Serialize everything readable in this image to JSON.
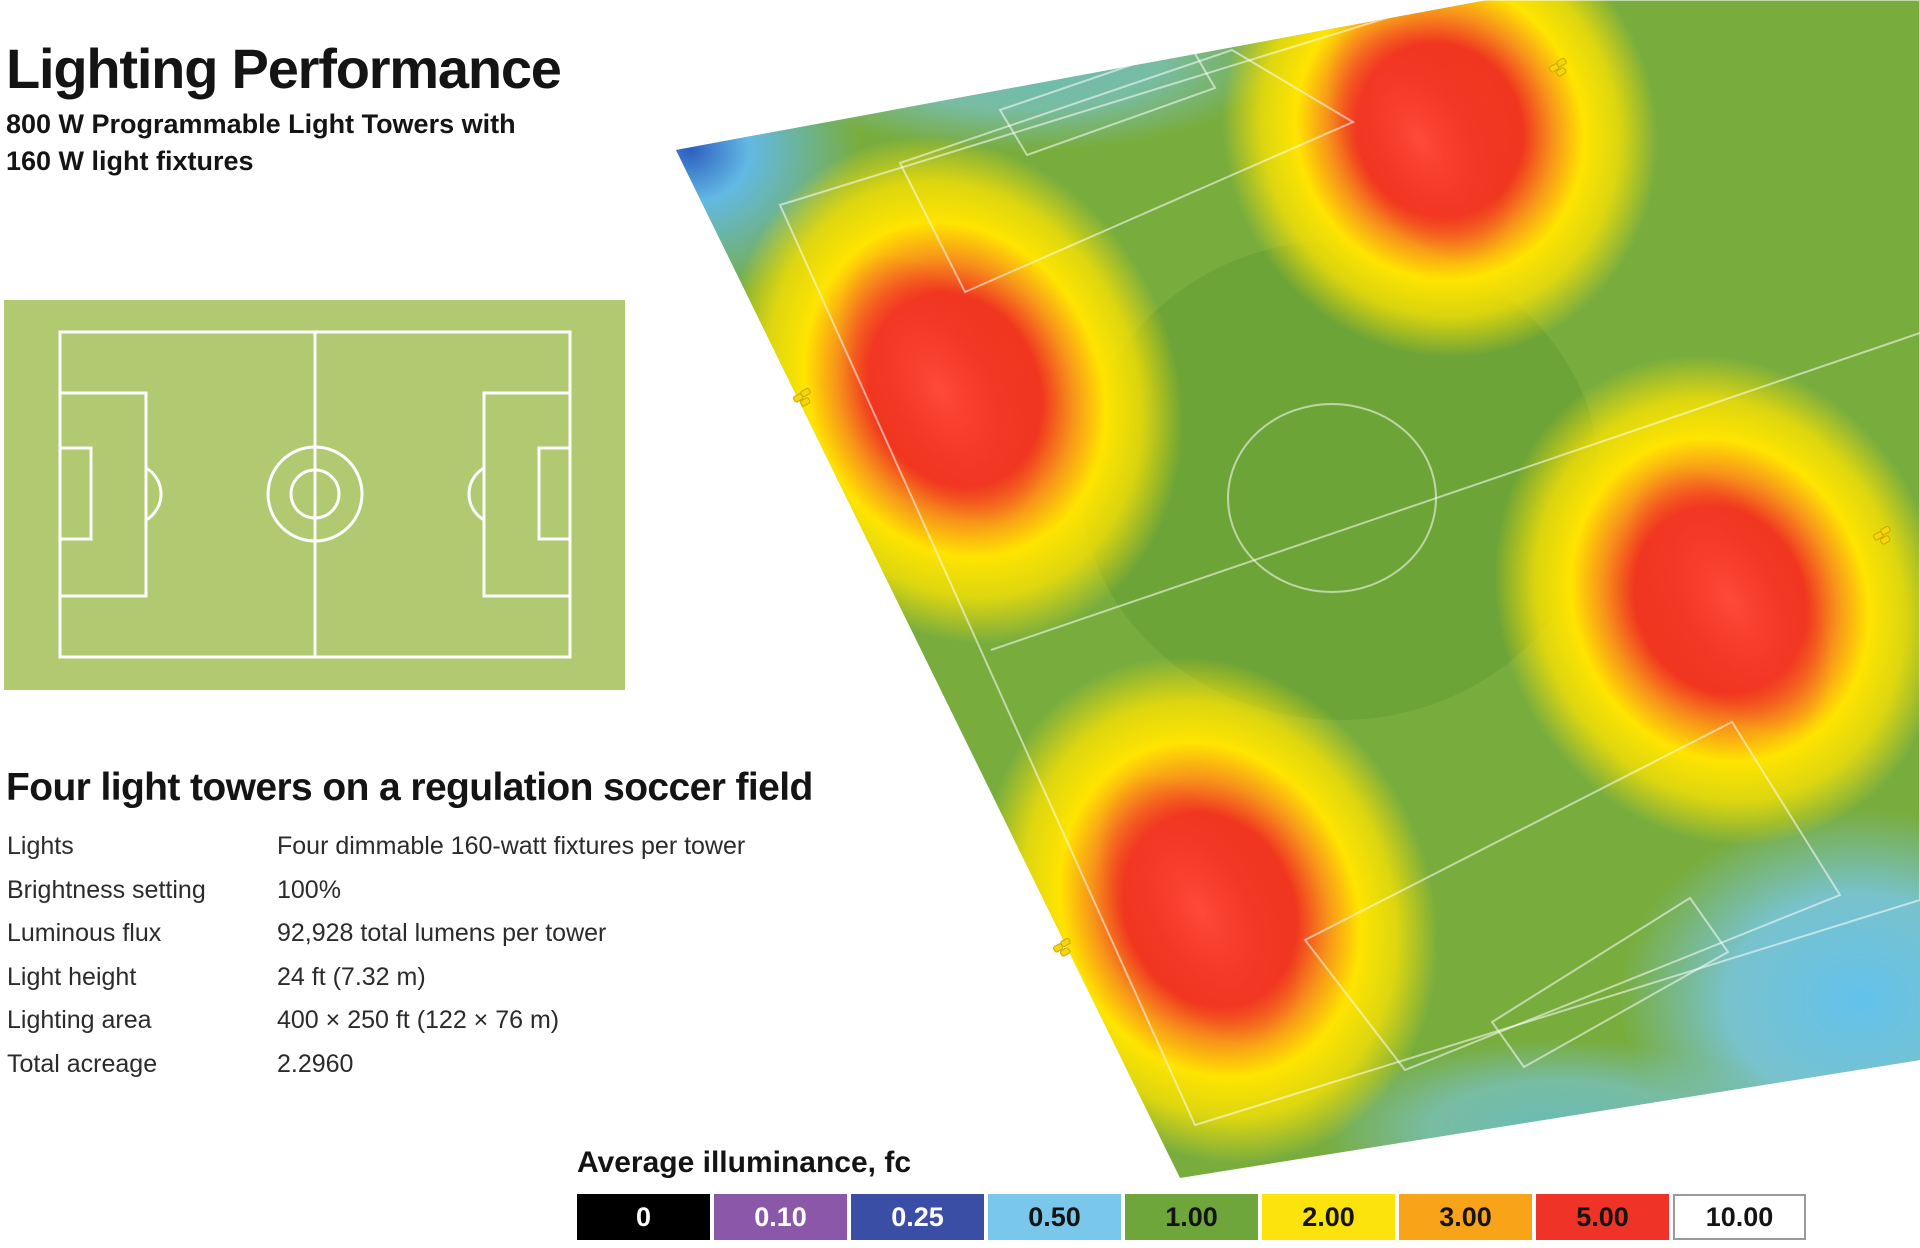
{
  "header": {
    "title": "Lighting Performance",
    "subtitle_line1": "800 W Programmable Light Towers with",
    "subtitle_line2": "160 W light fixtures"
  },
  "section": {
    "heading": "Four light towers on a regulation soccer field"
  },
  "specs": [
    {
      "label": "Lights",
      "value": "Four dimmable 160-watt fixtures per tower"
    },
    {
      "label": "Brightness setting",
      "value": "100%"
    },
    {
      "label": "Luminous flux",
      "value": "92,928 total lumens per tower"
    },
    {
      "label": "Light height",
      "value": "24 ft (7.32 m)"
    },
    {
      "label": "Lighting area",
      "value": "400 × 250 ft (122 × 76 m)"
    },
    {
      "label": "Total acreage",
      "value": "2.2960"
    }
  ],
  "legend": {
    "title": "Average illuminance, fc",
    "items": [
      {
        "label": "0",
        "color": "#000000",
        "text_color": "#ffffff"
      },
      {
        "label": "0.10",
        "color": "#8b57a9",
        "text_color": "#ffffff"
      },
      {
        "label": "0.25",
        "color": "#3b4ea6",
        "text_color": "#ffffff"
      },
      {
        "label": "0.50",
        "color": "#79c7ea",
        "text_color": "#141414"
      },
      {
        "label": "1.00",
        "color": "#6ea63c",
        "text_color": "#141414"
      },
      {
        "label": "2.00",
        "color": "#fbe30b",
        "text_color": "#141414"
      },
      {
        "label": "3.00",
        "color": "#f9a318",
        "text_color": "#141414"
      },
      {
        "label": "5.00",
        "color": "#ef3326",
        "text_color": "#141414"
      },
      {
        "label": "10.00",
        "color": "#ffffff",
        "text_color": "#141414",
        "border": "#9a9a9a"
      }
    ]
  },
  "colors": {
    "field_green": "#b1c971",
    "field_lines": "#ffffff",
    "heat_green": "#78ad3e",
    "heat_blue": "#6cc4ea",
    "heat_yellow": "#ffe400",
    "heat_red": "#f23a25",
    "fixture_yellow": "#f6d40e"
  },
  "icons": [
    "light-tower-icon"
  ]
}
